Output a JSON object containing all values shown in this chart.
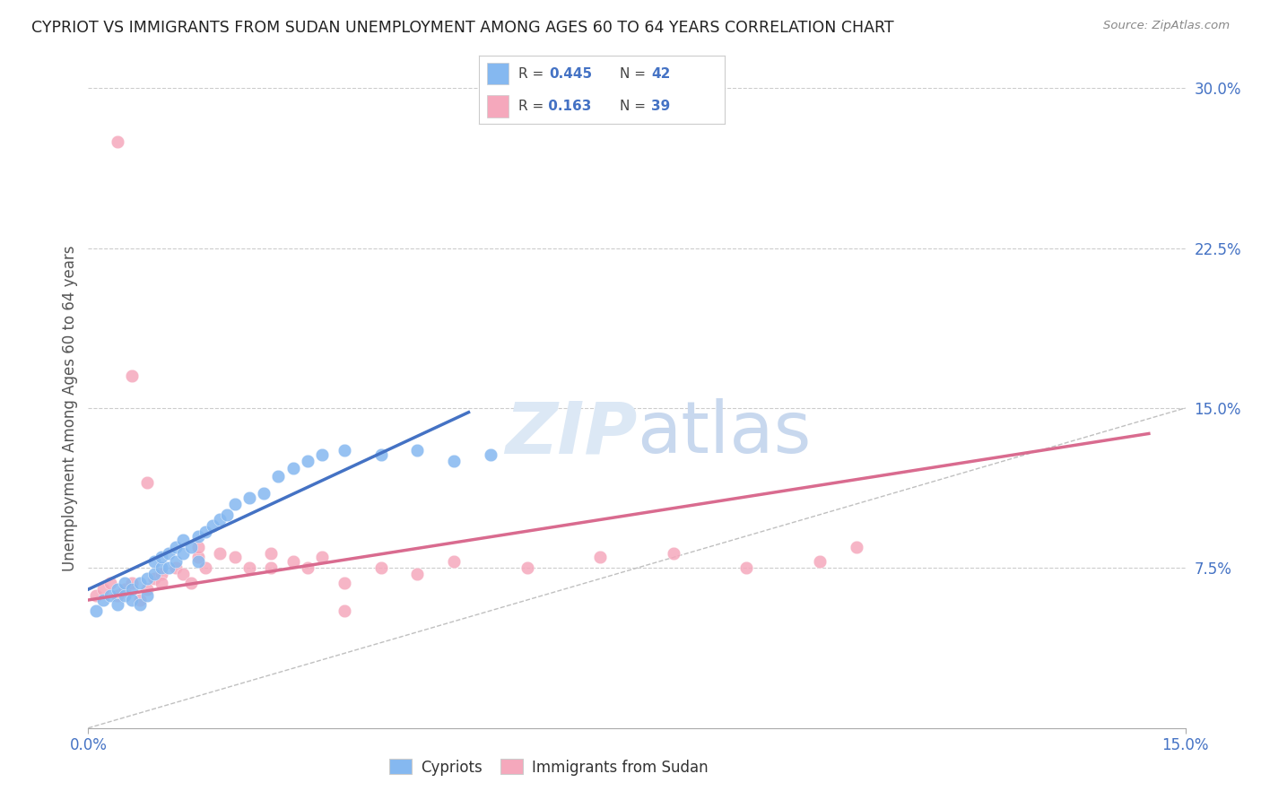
{
  "title": "CYPRIOT VS IMMIGRANTS FROM SUDAN UNEMPLOYMENT AMONG AGES 60 TO 64 YEARS CORRELATION CHART",
  "source": "Source: ZipAtlas.com",
  "ylabel": "Unemployment Among Ages 60 to 64 years",
  "xlim": [
    0.0,
    0.15
  ],
  "ylim": [
    0.0,
    0.3
  ],
  "r_cypriot": 0.445,
  "n_cypriot": 42,
  "r_sudan": 0.163,
  "n_sudan": 39,
  "color_cypriot": "#85b8f0",
  "color_sudan": "#f5a8bc",
  "color_cypriot_line": "#4472c4",
  "color_sudan_line": "#d96b8f",
  "color_diag_line": "#c0c0c0",
  "background_color": "#ffffff",
  "cypriot_x": [
    0.001,
    0.002,
    0.003,
    0.004,
    0.004,
    0.005,
    0.005,
    0.006,
    0.006,
    0.007,
    0.007,
    0.008,
    0.008,
    0.009,
    0.009,
    0.01,
    0.01,
    0.011,
    0.011,
    0.012,
    0.012,
    0.013,
    0.013,
    0.014,
    0.015,
    0.015,
    0.016,
    0.017,
    0.018,
    0.019,
    0.02,
    0.022,
    0.024,
    0.026,
    0.028,
    0.03,
    0.032,
    0.035,
    0.04,
    0.045,
    0.05,
    0.055
  ],
  "cypriot_y": [
    0.055,
    0.06,
    0.062,
    0.065,
    0.058,
    0.068,
    0.062,
    0.065,
    0.06,
    0.068,
    0.058,
    0.062,
    0.07,
    0.072,
    0.078,
    0.075,
    0.08,
    0.082,
    0.075,
    0.085,
    0.078,
    0.082,
    0.088,
    0.085,
    0.09,
    0.078,
    0.092,
    0.095,
    0.098,
    0.1,
    0.105,
    0.108,
    0.11,
    0.118,
    0.122,
    0.125,
    0.128,
    0.13,
    0.128,
    0.13,
    0.125,
    0.128
  ],
  "sudan_x": [
    0.001,
    0.002,
    0.003,
    0.004,
    0.005,
    0.006,
    0.007,
    0.008,
    0.009,
    0.01,
    0.01,
    0.012,
    0.013,
    0.014,
    0.015,
    0.016,
    0.018,
    0.02,
    0.022,
    0.025,
    0.028,
    0.03,
    0.032,
    0.035,
    0.04,
    0.045,
    0.05,
    0.06,
    0.07,
    0.08,
    0.09,
    0.1,
    0.004,
    0.006,
    0.008,
    0.015,
    0.025,
    0.035,
    0.105
  ],
  "sudan_y": [
    0.062,
    0.065,
    0.068,
    0.062,
    0.065,
    0.068,
    0.06,
    0.065,
    0.07,
    0.072,
    0.068,
    0.075,
    0.072,
    0.068,
    0.08,
    0.075,
    0.082,
    0.08,
    0.075,
    0.082,
    0.078,
    0.075,
    0.08,
    0.068,
    0.075,
    0.072,
    0.078,
    0.075,
    0.08,
    0.082,
    0.075,
    0.078,
    0.275,
    0.165,
    0.115,
    0.085,
    0.075,
    0.055,
    0.085
  ],
  "cypriot_line_x": [
    0.0,
    0.052
  ],
  "cypriot_line_y": [
    0.065,
    0.148
  ],
  "sudan_line_x": [
    0.0,
    0.145
  ],
  "sudan_line_y": [
    0.06,
    0.138
  ]
}
